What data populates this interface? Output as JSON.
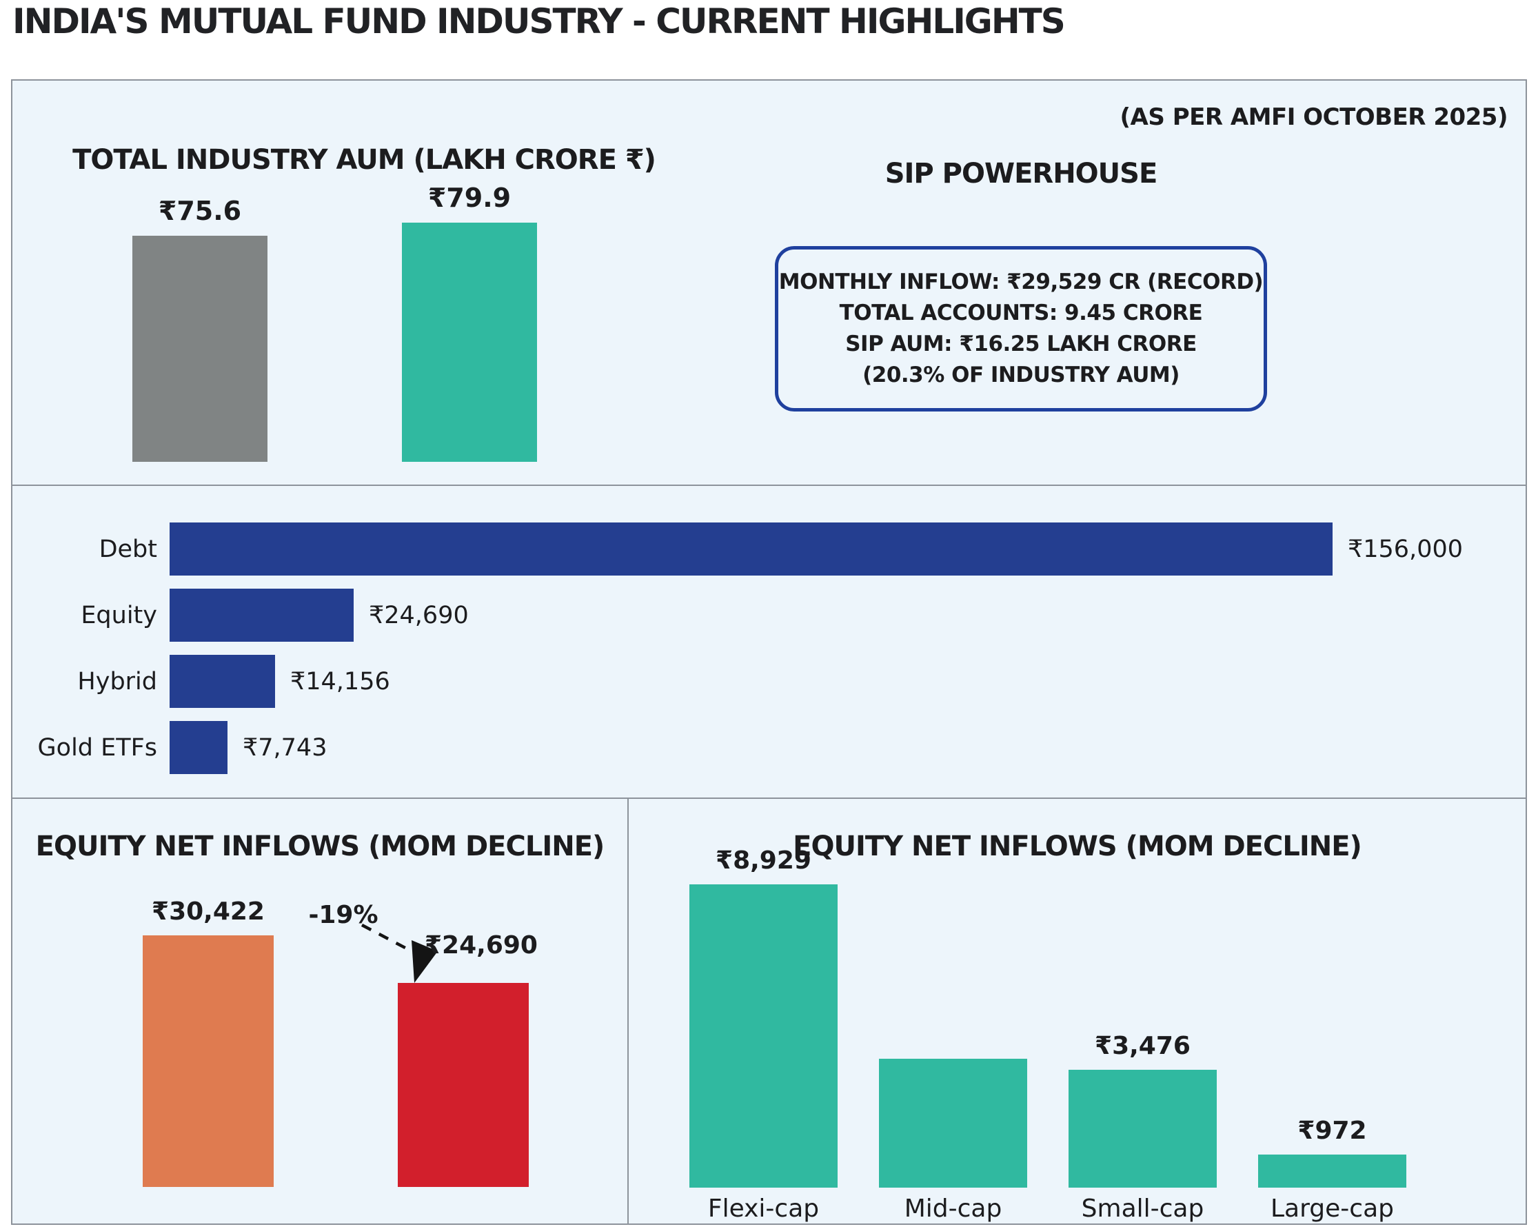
{
  "page": {
    "title": "INDIA'S MUTUAL FUND INDUSTRY - CURRENT HIGHLIGHTS",
    "subtitle": "(AS PER AMFI OCTOBER 2025)"
  },
  "theme": {
    "panel_bg": "#edf5fb",
    "panel_border": "#8d939b",
    "text_color": "#1c1c1e",
    "sip_box_border": "#1f409e"
  },
  "sip": {
    "title": "SIP POWERHOUSE",
    "lines": [
      "MONTHLY INFLOW: ₹29,529 CR (RECORD)",
      "TOTAL ACCOUNTS: 9.45 CRORE",
      "SIP AUM: ₹16.25 LAKH CRORE",
      "(20.3% OF INDUSTRY AUM)"
    ]
  },
  "chart_data": [
    {
      "id": "total-industry-aum",
      "type": "bar",
      "title": "TOTAL INDUSTRY AUM (LAKH CRORE ₹)",
      "values": [
        75.6,
        79.9
      ],
      "data_labels": [
        "₹75.6",
        "₹79.9"
      ],
      "colors": [
        "#808484",
        "#30b9a0"
      ]
    },
    {
      "id": "net-inflows-by-category",
      "type": "bar",
      "orientation": "horizontal",
      "categories": [
        "Debt",
        "Equity",
        "Hybrid",
        "Gold ETFs"
      ],
      "values": [
        156000,
        24690,
        14156,
        7743
      ],
      "data_labels": [
        "₹156,000",
        "₹24,690",
        "₹14,156",
        "₹7,743"
      ],
      "bar_color": "#243e90"
    },
    {
      "id": "equity-net-inflows-mom",
      "type": "bar",
      "title": "EQUITY NET INFLOWS (MOM DECLINE)",
      "values": [
        30422,
        24690
      ],
      "data_labels": [
        "₹30,422",
        "₹24,690"
      ],
      "colors": [
        "#df7b50",
        "#d21f2c"
      ],
      "annotation": "-19%"
    },
    {
      "id": "equity-net-inflows-by-cap",
      "type": "bar",
      "title": "EQUITY NET INFLOWS (MOM DECLINE)",
      "categories": [
        "Flexi-cap",
        "Mid-cap",
        "Small-cap",
        "Large-cap"
      ],
      "values": [
        8929,
        3800,
        3476,
        972
      ],
      "data_labels": [
        "₹8,929",
        "",
        "₹3,476",
        "₹972"
      ],
      "bar_color": "#30b9a0",
      "mid_cap_value_estimated": true
    }
  ]
}
